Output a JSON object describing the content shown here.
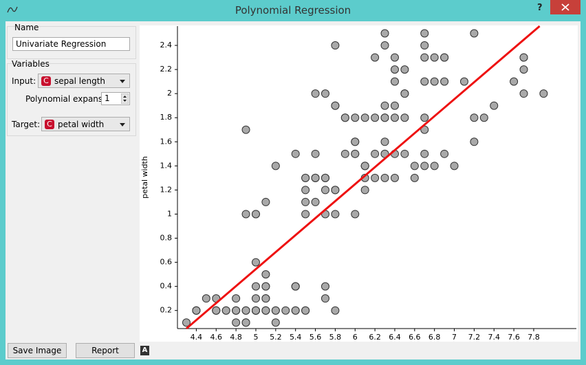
{
  "window": {
    "title": "Polynomial Regression",
    "help": "?"
  },
  "controls": {
    "name_group": "Name",
    "name_value": "Univariate Regression",
    "variables_group": "Variables",
    "input_label": "Input:",
    "input_icon": "C",
    "input_value": "sepal length",
    "expansion_label": "Polynomial expansion:",
    "expansion_value": 1,
    "target_label": "Target:",
    "target_icon": "C",
    "target_value": "petal width"
  },
  "buttons": {
    "save": "Save Image",
    "report": "Report",
    "auto": "A"
  },
  "chart_data": {
    "type": "scatter",
    "x_label": "sepal length",
    "y_label": "petal width",
    "color": "#a9a9a9",
    "x": [
      5.1,
      4.9,
      4.7,
      4.6,
      5.0,
      5.4,
      4.6,
      5.0,
      4.4,
      4.9,
      5.4,
      4.8,
      4.8,
      4.3,
      5.8,
      5.7,
      5.4,
      5.1,
      5.7,
      5.1,
      5.4,
      5.1,
      4.6,
      5.1,
      4.8,
      5.0,
      5.0,
      5.2,
      5.2,
      4.7,
      4.8,
      5.4,
      5.2,
      5.5,
      4.9,
      5.0,
      5.5,
      4.9,
      4.4,
      5.1,
      5.0,
      4.5,
      4.4,
      5.0,
      5.1,
      4.8,
      5.1,
      4.6,
      5.3,
      5.0,
      7.0,
      6.4,
      6.9,
      5.5,
      6.5,
      5.7,
      6.3,
      4.9,
      6.6,
      5.2,
      5.0,
      5.9,
      6.0,
      6.1,
      5.6,
      6.7,
      5.6,
      5.8,
      6.2,
      5.6,
      5.9,
      6.1,
      6.3,
      6.1,
      6.4,
      6.6,
      6.8,
      6.7,
      6.0,
      5.7,
      5.5,
      5.5,
      5.8,
      6.0,
      5.4,
      6.0,
      6.7,
      6.3,
      5.6,
      5.5,
      5.5,
      6.1,
      5.8,
      5.0,
      5.6,
      5.7,
      5.7,
      6.2,
      5.1,
      5.7,
      6.3,
      5.8,
      7.1,
      6.3,
      6.5,
      7.6,
      4.9,
      7.3,
      6.7,
      7.2,
      6.5,
      6.4,
      6.8,
      5.7,
      5.8,
      6.4,
      6.5,
      7.7,
      7.7,
      6.0,
      6.9,
      5.6,
      7.7,
      6.3,
      6.7,
      7.2,
      6.2,
      6.1,
      6.4,
      7.2,
      7.4,
      7.9,
      6.4,
      6.3,
      6.1,
      7.7,
      6.3,
      6.4,
      6.0,
      6.9,
      6.7,
      6.9,
      5.8,
      6.8,
      6.7,
      6.7,
      6.3,
      6.5,
      6.2,
      5.9
    ],
    "values": [
      0.2,
      0.2,
      0.2,
      0.2,
      0.2,
      0.4,
      0.3,
      0.2,
      0.2,
      0.1,
      0.2,
      0.2,
      0.1,
      0.1,
      0.2,
      0.4,
      0.4,
      0.3,
      0.3,
      0.3,
      0.2,
      0.4,
      0.2,
      0.5,
      0.2,
      0.2,
      0.4,
      0.2,
      0.2,
      0.2,
      0.2,
      0.4,
      0.1,
      0.2,
      0.2,
      0.2,
      0.2,
      0.1,
      0.2,
      0.2,
      0.3,
      0.3,
      0.2,
      0.6,
      0.4,
      0.3,
      0.2,
      0.2,
      0.2,
      0.2,
      1.4,
      1.5,
      1.5,
      1.3,
      1.5,
      1.3,
      1.6,
      1.0,
      1.3,
      1.4,
      1.0,
      1.5,
      1.0,
      1.4,
      1.3,
      1.4,
      1.5,
      1.0,
      1.5,
      1.1,
      1.8,
      1.3,
      1.5,
      1.2,
      1.3,
      1.4,
      1.4,
      1.7,
      1.5,
      1.0,
      1.1,
      1.0,
      1.2,
      1.6,
      1.5,
      1.6,
      1.5,
      1.3,
      1.3,
      1.3,
      1.2,
      1.4,
      1.2,
      1.0,
      1.3,
      1.2,
      1.3,
      1.3,
      1.1,
      1.3,
      2.5,
      1.9,
      2.1,
      1.8,
      2.2,
      2.1,
      1.7,
      1.8,
      1.8,
      2.5,
      2.0,
      1.9,
      2.1,
      2.0,
      2.4,
      2.3,
      1.8,
      2.2,
      2.3,
      1.5,
      2.3,
      2.0,
      2.0,
      1.8,
      2.1,
      1.8,
      1.8,
      1.8,
      2.1,
      1.6,
      1.9,
      2.0,
      2.2,
      1.5,
      1.4,
      2.3,
      2.4,
      1.8,
      1.8,
      2.1,
      2.4,
      2.3,
      1.9,
      2.3,
      2.5,
      2.3,
      1.9,
      2.0,
      2.3,
      1.8
    ],
    "regression_line": {
      "color": "#ee1111",
      "x": [
        4.3,
        7.86
      ],
      "y": [
        0.05,
        2.56
      ]
    },
    "xlim": [
      4.21,
      8.23
    ],
    "ylim": [
      0.05,
      2.56
    ],
    "xticks": [
      4.4,
      4.6,
      4.8,
      5,
      5.2,
      5.4,
      5.6,
      5.8,
      6,
      6.2,
      6.4,
      6.6,
      6.8,
      7,
      7.2,
      7.4,
      7.6,
      7.8
    ],
    "yticks": [
      0.2,
      0.4,
      0.6,
      0.8,
      1,
      1.2,
      1.4,
      1.6,
      1.8,
      2,
      2.2,
      2.4
    ]
  }
}
